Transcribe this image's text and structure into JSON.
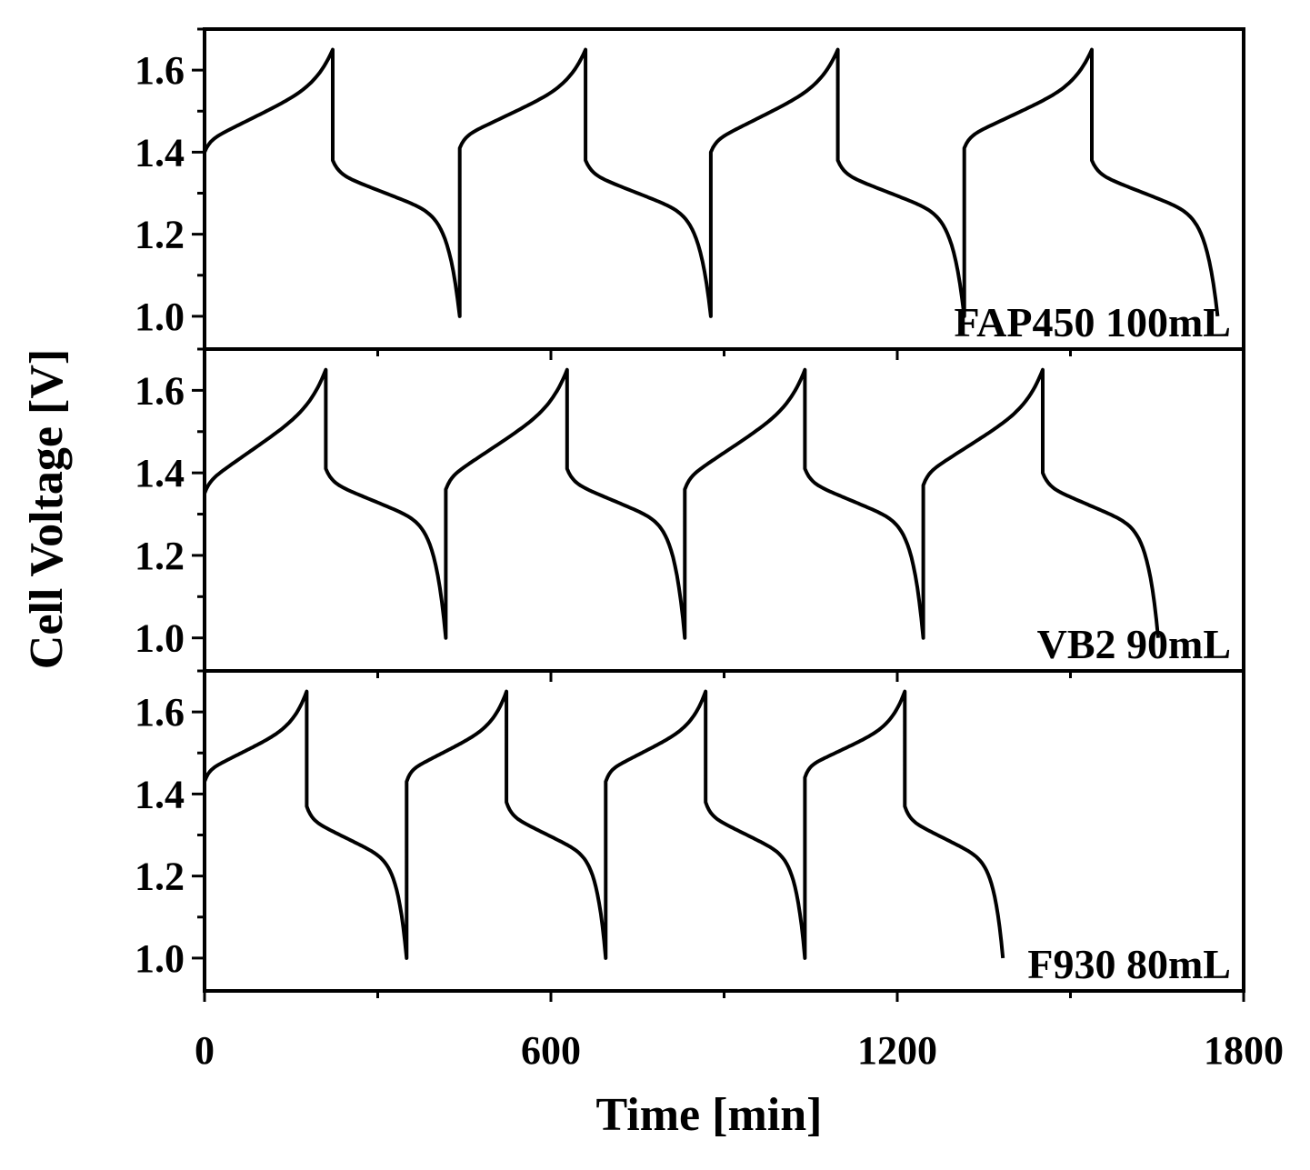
{
  "chart_data": {
    "type": "line",
    "xlabel": "Time [min]",
    "ylabel": "Cell Voltage [V]",
    "xlim": [
      0,
      1800
    ],
    "ylim": [
      0.92,
      1.7
    ],
    "x_ticks": [
      "0",
      "600",
      "1200",
      "1800"
    ],
    "y_ticks": [
      "1.0",
      "1.2",
      "1.4",
      "1.6"
    ],
    "line_color": "#000000",
    "charge_cutoff_voltage": 1.65,
    "discharge_cutoff_voltage": 1.0,
    "panels": [
      {
        "label": "FAP450 100mL",
        "cycles": [
          {
            "charge_start": 0,
            "charge_end": 222,
            "discharge_end": 442,
            "v_charge_start": 1.4,
            "v_discharge_start": 1.38
          },
          {
            "charge_start": 442,
            "charge_end": 660,
            "discharge_end": 877,
            "v_charge_start": 1.41,
            "v_discharge_start": 1.38
          },
          {
            "charge_start": 877,
            "charge_end": 1097,
            "discharge_end": 1316,
            "v_charge_start": 1.4,
            "v_discharge_start": 1.38
          },
          {
            "charge_start": 1316,
            "charge_end": 1537,
            "discharge_end": 1755,
            "v_charge_start": 1.41,
            "v_discharge_start": 1.38
          }
        ]
      },
      {
        "label": "VB2 90mL",
        "cycles": [
          {
            "charge_start": 0,
            "charge_end": 210,
            "discharge_end": 418,
            "v_charge_start": 1.35,
            "v_discharge_start": 1.41
          },
          {
            "charge_start": 418,
            "charge_end": 628,
            "discharge_end": 832,
            "v_charge_start": 1.36,
            "v_discharge_start": 1.41
          },
          {
            "charge_start": 832,
            "charge_end": 1040,
            "discharge_end": 1245,
            "v_charge_start": 1.36,
            "v_discharge_start": 1.41
          },
          {
            "charge_start": 1245,
            "charge_end": 1452,
            "discharge_end": 1652,
            "v_charge_start": 1.37,
            "v_discharge_start": 1.4
          }
        ]
      },
      {
        "label": "F930 80mL",
        "cycles": [
          {
            "charge_start": 0,
            "charge_end": 177,
            "discharge_end": 350,
            "v_charge_start": 1.43,
            "v_discharge_start": 1.37
          },
          {
            "charge_start": 350,
            "charge_end": 523,
            "discharge_end": 695,
            "v_charge_start": 1.43,
            "v_discharge_start": 1.38
          },
          {
            "charge_start": 695,
            "charge_end": 868,
            "discharge_end": 1040,
            "v_charge_start": 1.43,
            "v_discharge_start": 1.38
          },
          {
            "charge_start": 1040,
            "charge_end": 1213,
            "discharge_end": 1383,
            "v_charge_start": 1.44,
            "v_discharge_start": 1.37
          }
        ]
      }
    ]
  }
}
